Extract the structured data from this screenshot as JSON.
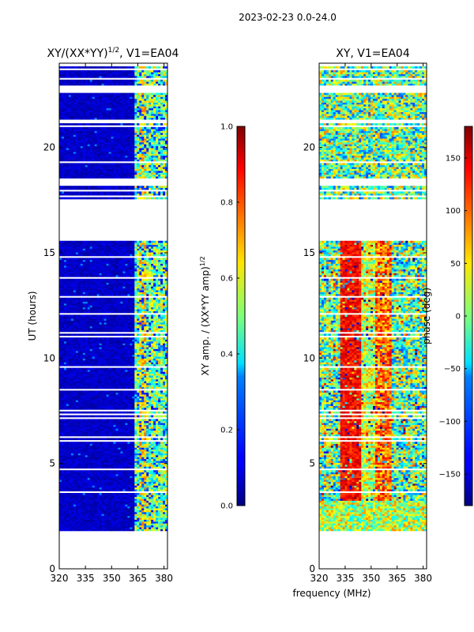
{
  "figure": {
    "suptitle": "2023-02-23 0.0-24.0",
    "xlabel": "frequency (MHz)"
  },
  "chart_data": [
    {
      "type": "heatmap",
      "name": "amplitude",
      "title_main": "XY/(XX*YY)",
      "title_sup": "1/2",
      "title_tail": ", V1=EA04",
      "ylabel": "UT (hours)",
      "xlim": [
        320,
        382
      ],
      "ylim": [
        0,
        24
      ],
      "xticks": [
        320,
        335,
        350,
        365,
        380
      ],
      "yticks": [
        0,
        5,
        10,
        15,
        20
      ],
      "colorbar": {
        "label_main": "XY amp. / (XX*YY amp)",
        "label_sup": "1/2",
        "range": [
          0.0,
          1.0
        ],
        "ticks": [
          "0.0",
          "0.2",
          "0.4",
          "0.6",
          "0.8",
          "1.0"
        ],
        "colormap": "jet"
      }
    },
    {
      "type": "heatmap",
      "name": "phase",
      "title_main": "XY, V1=EA04",
      "ylabel": "",
      "xlim": [
        320,
        382
      ],
      "ylim": [
        0,
        24
      ],
      "xticks": [
        320,
        335,
        350,
        365,
        380
      ],
      "yticks": [
        0,
        5,
        10,
        15,
        20
      ],
      "colorbar": {
        "label_main": "phase (deg)",
        "range": [
          -180,
          180
        ],
        "ticks": [
          "−150",
          "−100",
          "−50",
          "0",
          "50",
          "100",
          "150"
        ],
        "colormap": "jet"
      }
    }
  ],
  "data_coverage": {
    "t_start": 1.8,
    "t_end": 23.85,
    "gaps_hours": [
      [
        15.6,
        17.55
      ],
      [
        22.6,
        22.95
      ]
    ]
  }
}
